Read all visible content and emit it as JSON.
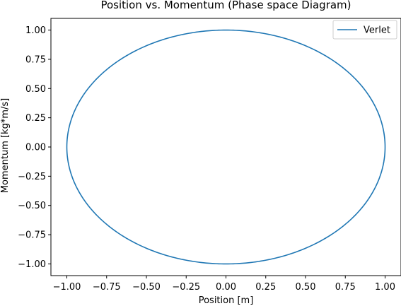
{
  "chart_data": {
    "type": "line",
    "title": "Position vs. Momentum (Phase space Diagram)",
    "xlabel": "Position [m]",
    "ylabel": "Momentum [kg*m/s]",
    "xlim": [
      -1.1,
      1.1
    ],
    "ylim": [
      -1.1,
      1.1
    ],
    "xticks": [
      -1.0,
      -0.75,
      -0.5,
      -0.25,
      0.0,
      0.25,
      0.5,
      0.75,
      1.0
    ],
    "yticks": [
      -1.0,
      -0.75,
      -0.5,
      -0.25,
      0.0,
      0.25,
      0.5,
      0.75,
      1.0
    ],
    "xtick_labels": [
      "−1.00",
      "−0.75",
      "−0.50",
      "−0.25",
      "0.00",
      "0.25",
      "0.50",
      "0.75",
      "1.00"
    ],
    "ytick_labels": [
      "−1.00",
      "−0.75",
      "−0.50",
      "−0.25",
      "0.00",
      "0.25",
      "0.50",
      "0.75",
      "1.00"
    ],
    "grid": false,
    "legend_position": "top-right",
    "series": [
      {
        "name": "Verlet",
        "color": "#1f77b4",
        "shape": "closed-ellipse",
        "center": [
          0.0,
          0.0
        ],
        "x_amplitude": 1.0,
        "y_amplitude": 1.0
      }
    ]
  }
}
